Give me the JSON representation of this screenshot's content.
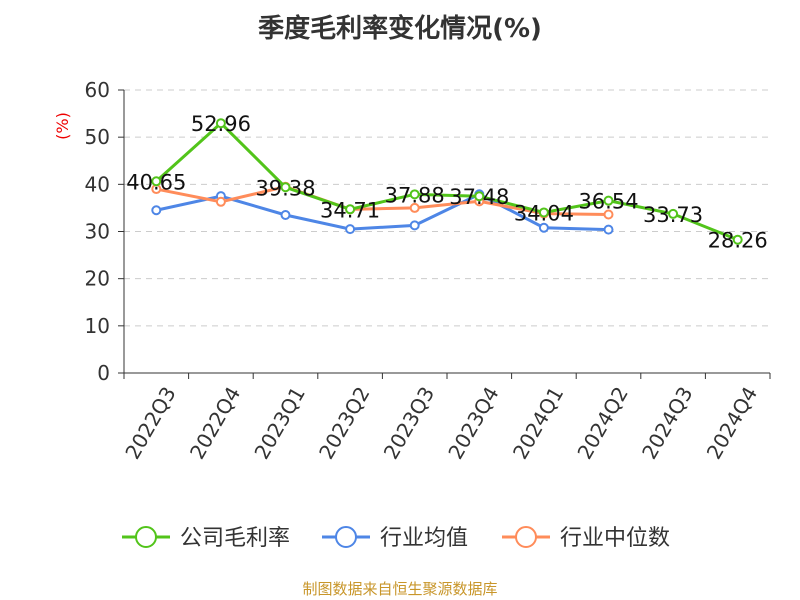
{
  "chart_data": {
    "type": "line",
    "title": "季度毛利率变化情况(%)",
    "ylabel": "(%)",
    "ylim": [
      0,
      60
    ],
    "yticks": [
      0,
      10,
      20,
      30,
      40,
      50,
      60
    ],
    "grid": true,
    "legend_position": "bottom",
    "categories": [
      "2022Q3",
      "2022Q4",
      "2023Q1",
      "2023Q2",
      "2023Q3",
      "2023Q4",
      "2024Q1",
      "2024Q2",
      "2024Q3",
      "2024Q4"
    ],
    "series": [
      {
        "name": "公司毛利率",
        "color": "#52c41a",
        "values": [
          40.65,
          52.96,
          39.38,
          34.71,
          37.88,
          37.48,
          34.04,
          36.54,
          33.73,
          28.26
        ],
        "labels": true
      },
      {
        "name": "行业均值",
        "color": "#4e86e6",
        "values": [
          34.5,
          37.5,
          33.5,
          30.5,
          31.3,
          37.9,
          30.8,
          30.4,
          null,
          null
        ]
      },
      {
        "name": "行业中位数",
        "color": "#ff8c5a",
        "values": [
          39.0,
          36.3,
          39.5,
          34.7,
          35.0,
          36.4,
          33.8,
          33.6,
          null,
          null
        ]
      }
    ]
  },
  "source": "制图数据来自恒生聚源数据库"
}
